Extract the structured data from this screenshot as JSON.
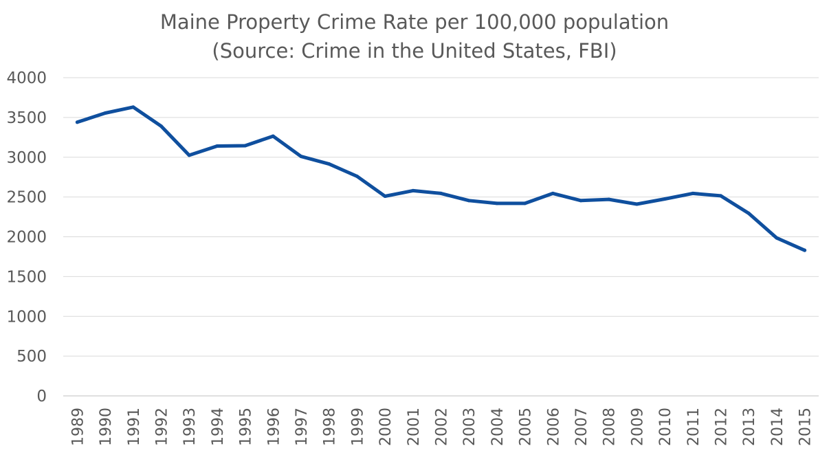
{
  "chart_data": {
    "type": "line",
    "title": "Maine Property Crime Rate per 100,000 population",
    "subtitle": "(Source: Crime in the United States, FBI)",
    "xlabel": "",
    "ylabel": "",
    "ylim": [
      0,
      4000
    ],
    "yticks": [
      "0",
      "500",
      "1000",
      "1500",
      "2000",
      "2500",
      "3000",
      "3500",
      "4000"
    ],
    "grid": true,
    "legend": "none",
    "categories": [
      "1989",
      "1990",
      "1991",
      "1992",
      "1993",
      "1994",
      "1995",
      "1996",
      "1997",
      "1998",
      "1999",
      "2000",
      "2001",
      "2002",
      "2003",
      "2004",
      "2005",
      "2006",
      "2007",
      "2008",
      "2009",
      "2010",
      "2011",
      "2012",
      "2013",
      "2014",
      "2015"
    ],
    "series": [
      {
        "name": "Property Crime Rate",
        "color": "#0f4f9e",
        "values": [
          3440,
          3555,
          3630,
          3390,
          3025,
          3140,
          3145,
          3265,
          3010,
          2915,
          2760,
          2510,
          2580,
          2545,
          2455,
          2420,
          2420,
          2545,
          2455,
          2470,
          2410,
          2475,
          2545,
          2515,
          2295,
          1985,
          1830
        ]
      }
    ]
  }
}
